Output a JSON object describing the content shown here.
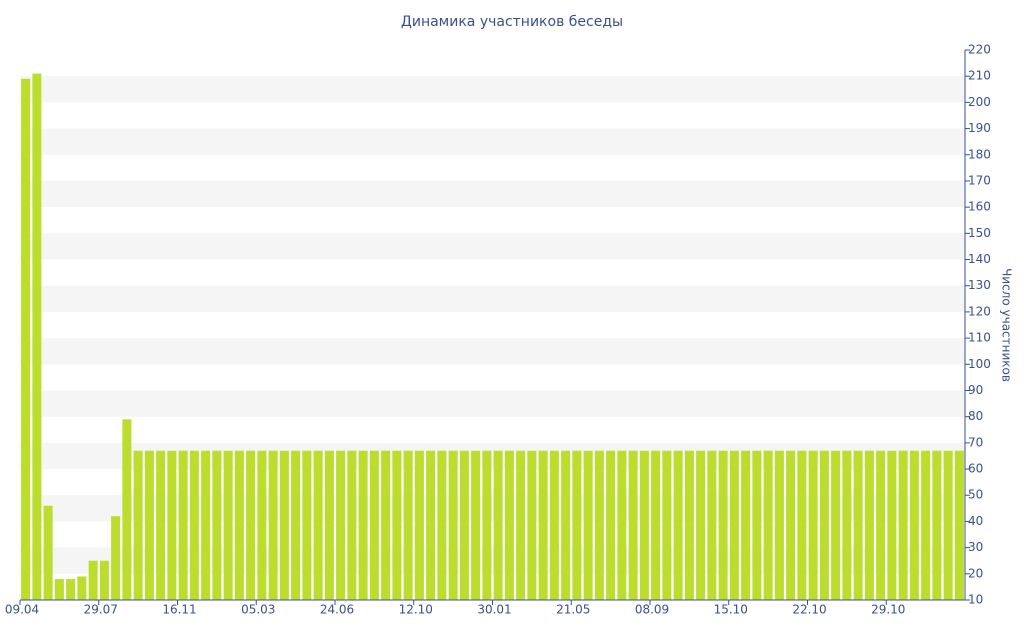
{
  "chart_data": {
    "type": "bar",
    "title": "Динамика участников беседы",
    "y_label": "Число участников",
    "color": "#bcdc2e",
    "categories": [
      "09.04",
      null,
      null,
      null,
      null,
      null,
      null,
      "29.07",
      null,
      null,
      null,
      null,
      null,
      null,
      "16.11",
      null,
      null,
      null,
      null,
      null,
      null,
      "05.03",
      null,
      null,
      null,
      null,
      null,
      null,
      "24.06",
      null,
      null,
      null,
      null,
      null,
      null,
      "12.10",
      null,
      null,
      null,
      null,
      null,
      null,
      "30.01",
      null,
      null,
      null,
      null,
      null,
      null,
      "21.05",
      null,
      null,
      null,
      null,
      null,
      null,
      "08.09",
      null,
      null,
      null,
      null,
      null,
      null,
      "15.10",
      null,
      null,
      null,
      null,
      null,
      null,
      "22.10",
      null,
      null,
      null,
      null,
      null,
      null,
      "29.10",
      null,
      null,
      null,
      null,
      null,
      null
    ],
    "values": [
      209,
      211,
      46,
      18,
      18,
      19,
      25,
      25,
      42,
      79,
      67,
      67,
      67,
      67,
      67,
      67,
      67,
      67,
      67,
      67,
      67,
      67,
      67,
      67,
      67,
      67,
      67,
      67,
      67,
      67,
      67,
      67,
      67,
      67,
      67,
      67,
      67,
      67,
      67,
      67,
      67,
      67,
      67,
      67,
      67,
      67,
      67,
      67,
      67,
      67,
      67,
      67,
      67,
      67,
      67,
      67,
      67,
      67,
      67,
      67,
      67,
      67,
      67,
      67,
      67,
      67,
      67,
      67,
      67,
      67,
      67,
      67,
      67,
      67,
      67,
      67,
      67,
      67,
      67,
      67,
      67,
      67,
      67,
      67
    ],
    "ylim": [
      10,
      220
    ],
    "yticks": [
      10,
      20,
      30,
      40,
      50,
      60,
      70,
      80,
      90,
      100,
      110,
      120,
      130,
      140,
      150,
      160,
      170,
      180,
      190,
      200,
      210,
      220
    ],
    "grid": true
  }
}
